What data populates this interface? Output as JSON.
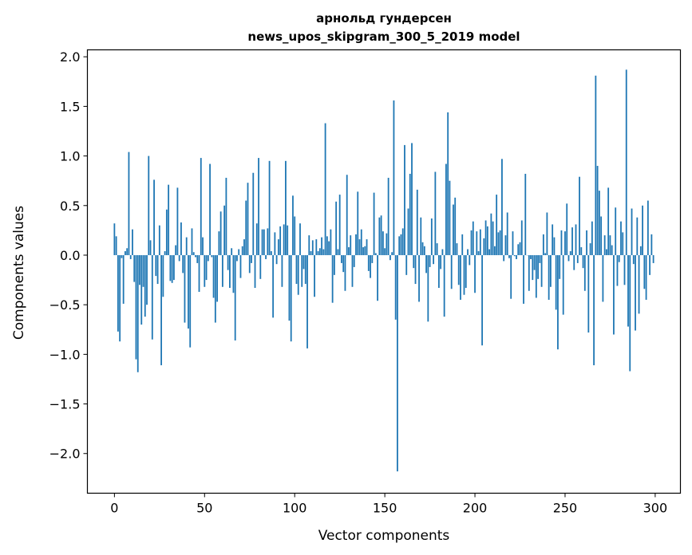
{
  "chart_data": {
    "type": "bar",
    "title": "арнольд гундерсен",
    "subtitle": "news_upos_skipgram_300_5_2019 model",
    "xlabel": "Vector components",
    "ylabel": "Components values",
    "xlim": [
      -15,
      314
    ],
    "ylim": [
      -2.4,
      2.07
    ],
    "xticks": [
      0,
      50,
      100,
      150,
      200,
      250,
      300
    ],
    "xtick_labels": [
      "0",
      "50",
      "100",
      "150",
      "200",
      "250",
      "300"
    ],
    "yticks": [
      2.0,
      1.5,
      1.0,
      0.5,
      0.0,
      -0.5,
      -1.0,
      -1.5,
      -2.0
    ],
    "ytick_labels": [
      "2.0",
      "1.5",
      "1.0",
      "0.5",
      "0.0",
      "−0.5",
      "−1.0",
      "−1.5",
      "−2.0"
    ],
    "color": "#1f77b4",
    "values": [
      0.32,
      0.19,
      -0.77,
      -0.87,
      -0.03,
      -0.49,
      0.04,
      0.07,
      1.04,
      -0.04,
      0.26,
      -0.27,
      -1.05,
      -1.18,
      -0.3,
      -0.7,
      -0.32,
      -0.62,
      -0.5,
      1.0,
      0.15,
      -0.85,
      0.76,
      -0.21,
      -0.29,
      0.3,
      -1.11,
      -0.42,
      0.04,
      0.46,
      0.71,
      -0.26,
      -0.28,
      -0.25,
      0.1,
      0.68,
      -0.06,
      0.33,
      -0.18,
      -0.68,
      0.18,
      -0.74,
      -0.93,
      0.27,
      0.03,
      -0.02,
      -0.08,
      -0.37,
      0.98,
      0.18,
      -0.32,
      -0.25,
      -0.06,
      0.92,
      -0.02,
      -0.43,
      -0.68,
      -0.47,
      0.24,
      0.44,
      -0.32,
      0.5,
      0.78,
      -0.15,
      -0.33,
      0.07,
      -0.38,
      -0.86,
      -0.06,
      0.06,
      -0.23,
      0.09,
      0.16,
      0.55,
      0.73,
      -0.18,
      -0.08,
      0.83,
      -0.33,
      0.32,
      0.98,
      -0.24,
      0.26,
      0.26,
      -0.04,
      0.27,
      0.95,
      0.04,
      -0.63,
      0.23,
      -0.09,
      0.16,
      0.29,
      -0.32,
      0.31,
      0.95,
      0.3,
      -0.66,
      -0.87,
      0.6,
      0.39,
      -0.29,
      -0.4,
      0.32,
      -0.32,
      -0.14,
      -0.29,
      -0.94,
      0.2,
      0.04,
      0.15,
      -0.42,
      0.16,
      0.04,
      0.07,
      0.18,
      0.06,
      1.33,
      0.19,
      0.14,
      0.26,
      -0.48,
      -0.2,
      0.54,
      0.06,
      0.61,
      -0.08,
      -0.17,
      -0.36,
      0.81,
      0.08,
      0.2,
      -0.32,
      -0.12,
      0.21,
      0.64,
      0.16,
      0.26,
      0.08,
      0.09,
      0.16,
      -0.16,
      -0.23,
      -0.08,
      0.63,
      0.02,
      -0.46,
      0.38,
      0.4,
      0.24,
      0.07,
      0.22,
      0.78,
      -0.05,
      0.03,
      1.56,
      -0.65,
      -2.18,
      0.19,
      0.21,
      0.27,
      1.11,
      -0.2,
      0.47,
      0.82,
      1.13,
      -0.13,
      -0.29,
      0.66,
      -0.47,
      0.38,
      0.13,
      0.09,
      -0.18,
      -0.67,
      -0.12,
      0.37,
      -0.09,
      0.84,
      0.12,
      -0.33,
      -0.14,
      0.06,
      -0.62,
      0.92,
      1.44,
      0.75,
      -0.34,
      0.51,
      0.58,
      0.12,
      -0.3,
      -0.45,
      0.21,
      -0.4,
      -0.33,
      0.06,
      -0.1,
      0.25,
      0.34,
      -0.38,
      0.24,
      0.04,
      0.26,
      -0.91,
      0.17,
      0.35,
      0.29,
      0.06,
      0.42,
      0.34,
      0.09,
      0.61,
      0.23,
      0.25,
      0.97,
      -0.06,
      0.2,
      0.43,
      -0.03,
      -0.44,
      0.24,
      -0.01,
      -0.04,
      0.11,
      0.13,
      0.35,
      -0.49,
      0.82,
      0.0,
      -0.36,
      -0.04,
      -0.25,
      -0.15,
      -0.43,
      -0.24,
      -0.08,
      -0.32,
      0.21,
      0.02,
      0.43,
      -0.45,
      -0.32,
      0.31,
      0.18,
      -0.55,
      -0.95,
      -0.24,
      0.25,
      -0.6,
      0.24,
      0.52,
      -0.06,
      0.04,
      0.28,
      -0.15,
      0.31,
      -0.08,
      0.79,
      0.08,
      -0.13,
      -0.36,
      0.25,
      -0.78,
      0.12,
      0.34,
      -1.11,
      1.81,
      0.9,
      0.65,
      0.39,
      -0.47,
      0.2,
      0.06,
      0.68,
      0.2,
      0.1,
      -0.8,
      0.48,
      -0.31,
      -0.07,
      0.34,
      0.23,
      -0.3,
      1.87,
      -0.72,
      -1.17,
      0.47,
      -0.09,
      -0.76,
      0.38,
      -0.59,
      0.09,
      0.5,
      -0.34,
      -0.45,
      0.55,
      -0.2,
      0.21,
      -0.08
    ]
  }
}
